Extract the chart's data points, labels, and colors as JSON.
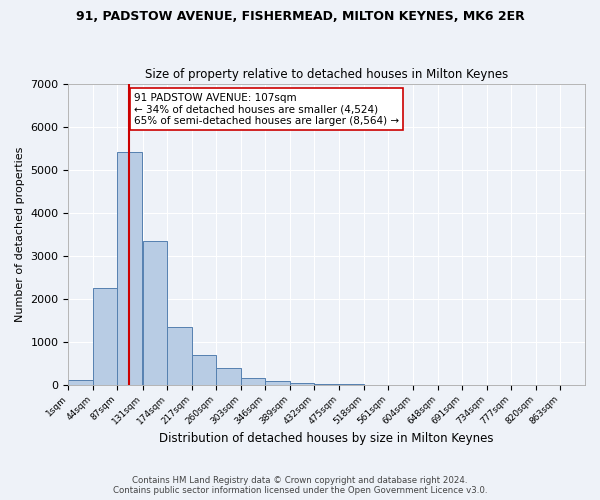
{
  "title1": "91, PADSTOW AVENUE, FISHERMEAD, MILTON KEYNES, MK6 2ER",
  "title2": "Size of property relative to detached houses in Milton Keynes",
  "xlabel": "Distribution of detached houses by size in Milton Keynes",
  "ylabel": "Number of detached properties",
  "footer1": "Contains HM Land Registry data © Crown copyright and database right 2024.",
  "footer2": "Contains public sector information licensed under the Open Government Licence v3.0.",
  "annotation_line1": "91 PADSTOW AVENUE: 107sqm",
  "annotation_line2": "← 34% of detached houses are smaller (4,524)",
  "annotation_line3": "65% of semi-detached houses are larger (8,564) →",
  "bar_color": "#b8cce4",
  "bar_edge_color": "#5580b0",
  "vline_color": "#cc0000",
  "vline_x": 107,
  "categories": [
    "1sqm",
    "44sqm",
    "87sqm",
    "131sqm",
    "174sqm",
    "217sqm",
    "260sqm",
    "303sqm",
    "346sqm",
    "389sqm",
    "432sqm",
    "475sqm",
    "518sqm",
    "561sqm",
    "604sqm",
    "648sqm",
    "691sqm",
    "734sqm",
    "777sqm",
    "820sqm",
    "863sqm"
  ],
  "bin_edges": [
    1,
    44,
    87,
    131,
    174,
    217,
    260,
    303,
    346,
    389,
    432,
    475,
    518,
    561,
    604,
    648,
    691,
    734,
    777,
    820,
    863
  ],
  "bar_heights": [
    100,
    2250,
    5400,
    3350,
    1350,
    700,
    380,
    155,
    75,
    40,
    15,
    5,
    3,
    2,
    1,
    0,
    0,
    0,
    0,
    0
  ],
  "ylim": [
    0,
    7000
  ],
  "yticks": [
    0,
    1000,
    2000,
    3000,
    4000,
    5000,
    6000,
    7000
  ],
  "background_color": "#eef2f8",
  "grid_color": "#ffffff"
}
